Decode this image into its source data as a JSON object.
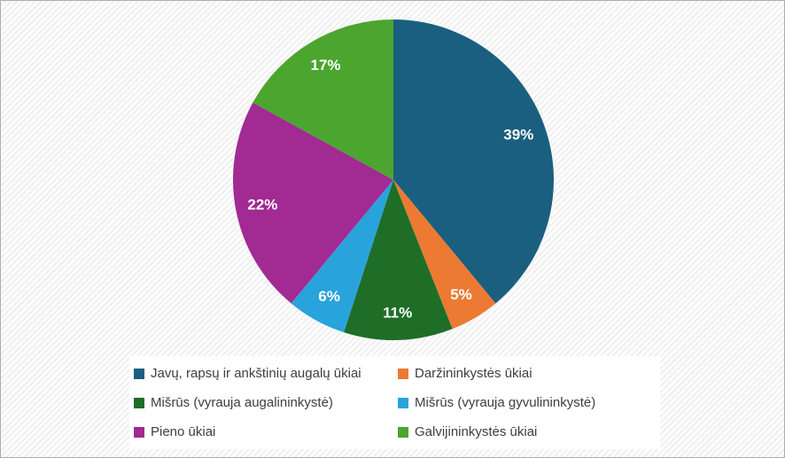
{
  "chart_data": {
    "type": "pie",
    "title": "",
    "start_angle_deg": 0,
    "direction": "clockwise",
    "slices": [
      {
        "label": "Javų, rapsų ir ankštinių augalų ūkiai",
        "value": 39,
        "display": "39%",
        "color": "#1B5F80"
      },
      {
        "label": "Daržininkystės ūkiai",
        "value": 5,
        "display": "5%",
        "color": "#EC7A33"
      },
      {
        "label": "Mišrūs (vyrauja augalininkystė)",
        "value": 11,
        "display": "11%",
        "color": "#1E6E28"
      },
      {
        "label": "Mišrūs (vyrauja gyvulininkystė)",
        "value": 6,
        "display": "6%",
        "color": "#29A3DC"
      },
      {
        "label": "Pieno ūkiai",
        "value": 22,
        "display": "22%",
        "color": "#A12A93"
      },
      {
        "label": "Galvijininkystės ūkiai",
        "value": 17,
        "display": "17%",
        "color": "#4BA52F"
      }
    ],
    "legend_position": "bottom",
    "legend_columns": 2,
    "legend_order": "row-major"
  },
  "theme": {
    "slice_label_color": "#FFFFFF",
    "legend_text_color": "#3E3E3E",
    "legend_background": "#FFFFFF",
    "canvas_stripe_color": "#F0F0F0",
    "canvas_base_color": "#FEFEFE",
    "frame_border_color": "#AEAEAE"
  }
}
